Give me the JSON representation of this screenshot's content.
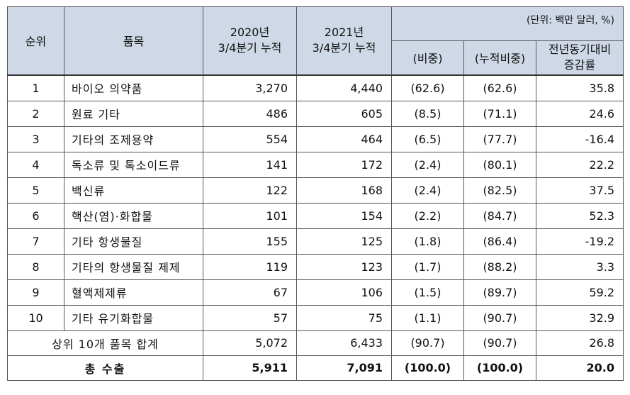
{
  "table": {
    "unit_note": "(단위: 백만 달러, %)",
    "headers": {
      "rank": "순위",
      "item": "품목",
      "y2020_line1": "2020년",
      "y2020_line2": "3/4분기 누적",
      "y2021_line1": "2021년",
      "y2021_line2": "3/4분기 누적",
      "share": "(비중)",
      "cum_share": "(누적비중)",
      "yoy_line1": "전년동기대비",
      "yoy_line2": "증감률"
    },
    "rows": [
      {
        "rank": "1",
        "item": "바이오 의약품",
        "v2020": "3,270",
        "v2021": "4,440",
        "share": "(62.6)",
        "cum": "(62.6)",
        "yoy": "35.8"
      },
      {
        "rank": "2",
        "item": "원료 기타",
        "v2020": "486",
        "v2021": "605",
        "share": "(8.5)",
        "cum": "(71.1)",
        "yoy": "24.6"
      },
      {
        "rank": "3",
        "item": "기타의 조제용약",
        "v2020": "554",
        "v2021": "464",
        "share": "(6.5)",
        "cum": "(77.7)",
        "yoy": "-16.4"
      },
      {
        "rank": "4",
        "item": "독소류 및 톡소이드류",
        "v2020": "141",
        "v2021": "172",
        "share": "(2.4)",
        "cum": "(80.1)",
        "yoy": "22.2"
      },
      {
        "rank": "5",
        "item": "백신류",
        "v2020": "122",
        "v2021": "168",
        "share": "(2.4)",
        "cum": "(82.5)",
        "yoy": "37.5"
      },
      {
        "rank": "6",
        "item": "핵산(염)·화합물",
        "v2020": "101",
        "v2021": "154",
        "share": "(2.2)",
        "cum": "(84.7)",
        "yoy": "52.3"
      },
      {
        "rank": "7",
        "item": "기타 항생물질",
        "v2020": "155",
        "v2021": "125",
        "share": "(1.8)",
        "cum": "(86.4)",
        "yoy": "-19.2"
      },
      {
        "rank": "8",
        "item": "기타의 항생물질 제제",
        "v2020": "119",
        "v2021": "123",
        "share": "(1.7)",
        "cum": "(88.2)",
        "yoy": "3.3"
      },
      {
        "rank": "9",
        "item": "혈액제제류",
        "v2020": "67",
        "v2021": "106",
        "share": "(1.5)",
        "cum": "(89.7)",
        "yoy": "59.2"
      },
      {
        "rank": "10",
        "item": "기타 유기화합물",
        "v2020": "57",
        "v2021": "75",
        "share": "(1.1)",
        "cum": "(90.7)",
        "yoy": "32.9"
      }
    ],
    "subtotal": {
      "label": "상위 10개 품목 합계",
      "v2020": "5,072",
      "v2021": "6,433",
      "share": "(90.7)",
      "cum": "(90.7)",
      "yoy": "26.8"
    },
    "total": {
      "label": "총 수출",
      "v2020": "5,911",
      "v2021": "7,091",
      "share": "(100.0)",
      "cum": "(100.0)",
      "yoy": "20.0"
    }
  }
}
